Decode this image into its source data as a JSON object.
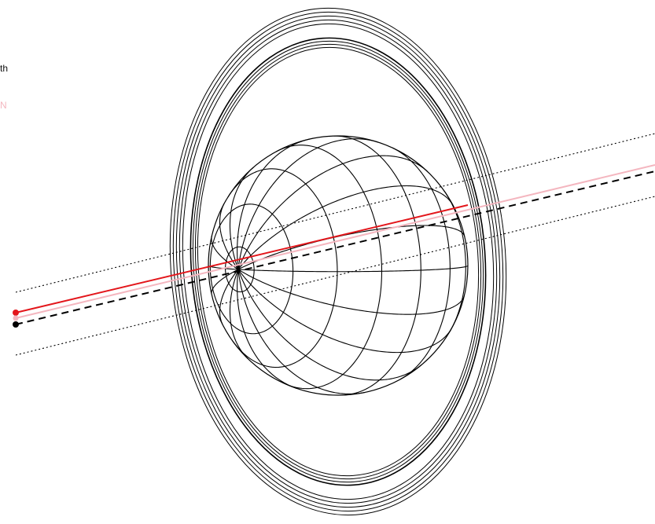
{
  "labels": {
    "text_1": "th",
    "text_2": "N"
  },
  "colors": {
    "background": "#ffffff",
    "stroke": "#000000",
    "red_line": "#e3161b",
    "pink_line": "#f4b6bf",
    "label_dark": "#111111",
    "label_pink": "#f4b6bf"
  },
  "diagram": {
    "globe_parallels": 9,
    "globe_meridians": 18,
    "ring_count": 9,
    "lines": [
      "red-solid",
      "pink-solid",
      "black-dashed",
      "dotted-upper",
      "dotted-lower"
    ]
  }
}
